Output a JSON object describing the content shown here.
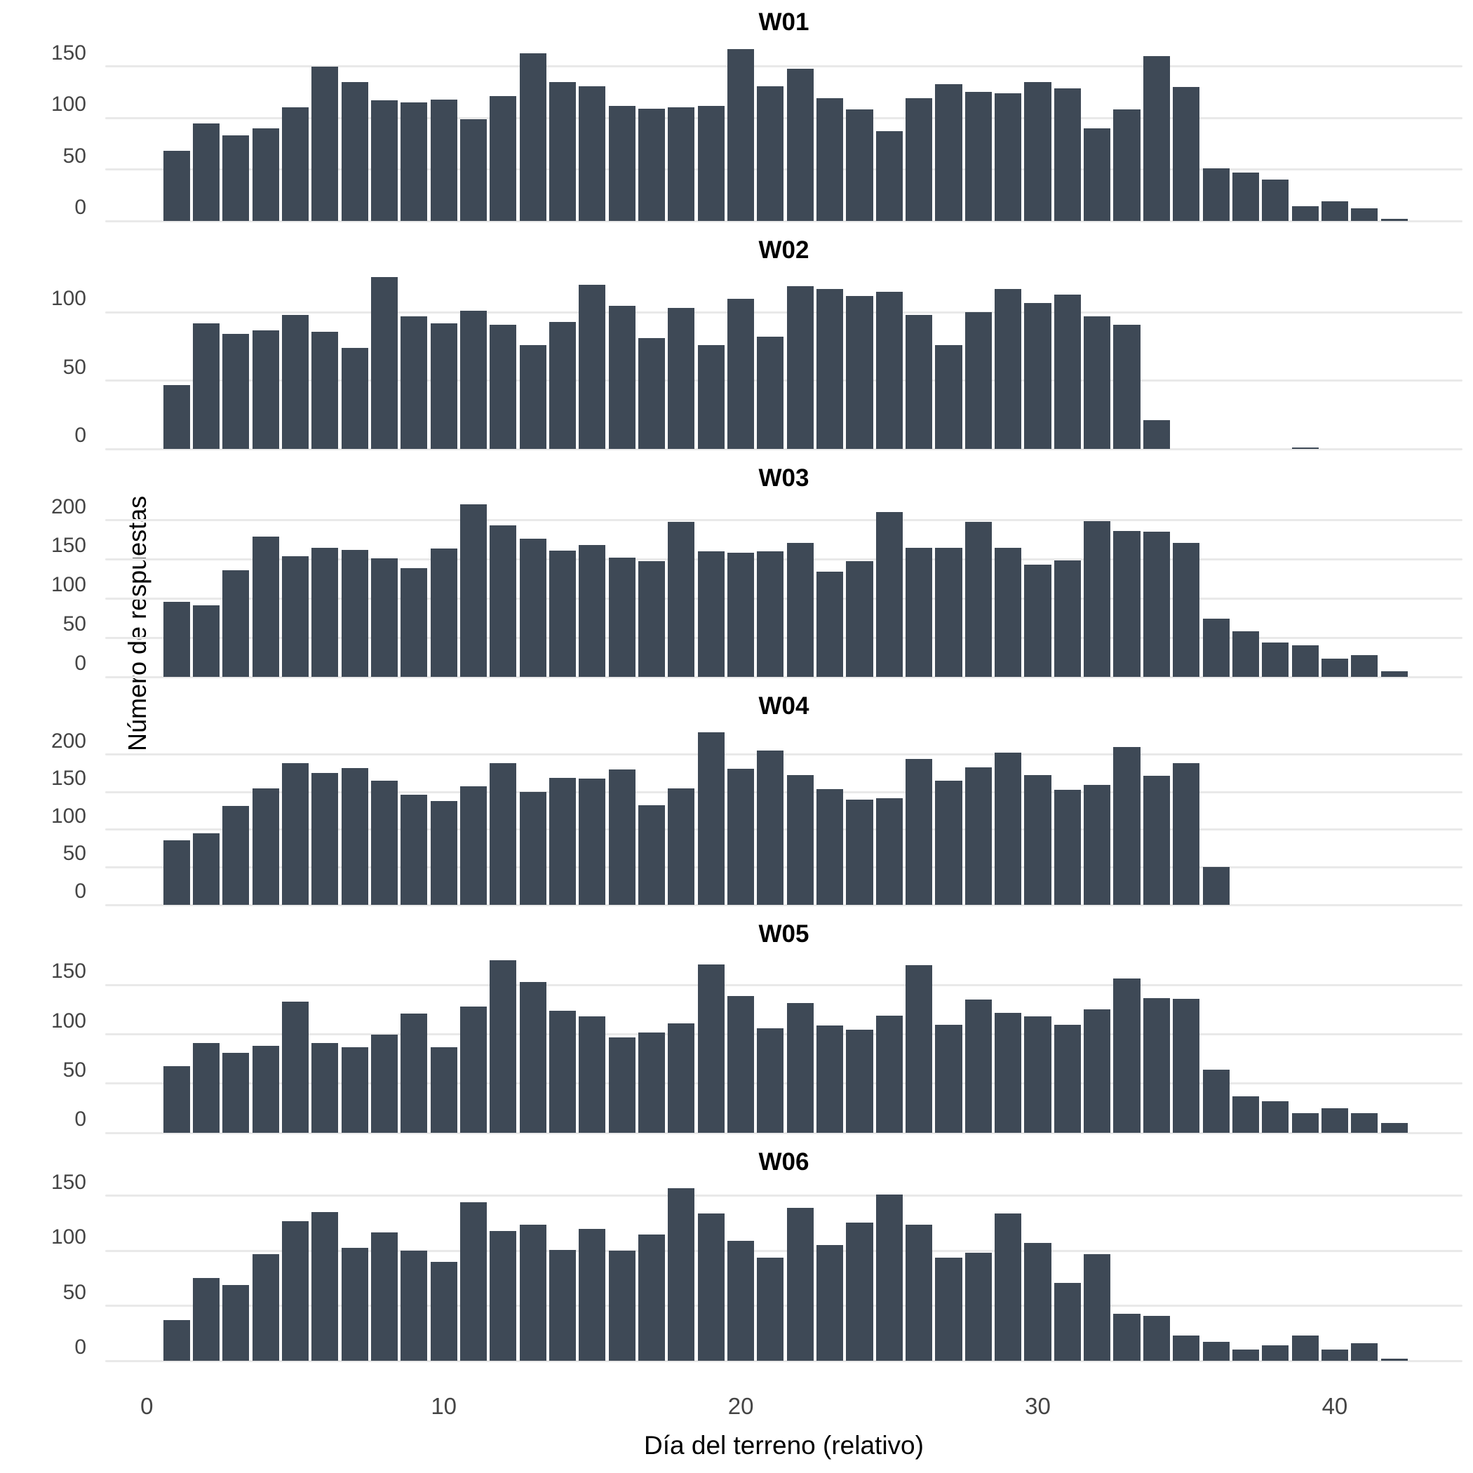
{
  "figure": {
    "background": "#ffffff",
    "bar_color": "#3e4956",
    "gridline_color": "#e9e9e9",
    "tick_label_color": "#454545",
    "axis_title_color": "#000000"
  },
  "chart_data": {
    "type": "bar",
    "title": "",
    "xlabel": "Día del terreno (relativo)",
    "ylabel": "Número de respuestas",
    "legend": "none",
    "grid": "horizontal",
    "x_ticks": [
      0,
      10,
      20,
      30,
      40
    ],
    "x_range": [
      -1.4,
      44.3
    ],
    "bar_width_days": 0.9,
    "x_unit": "day (bars centered at integer days starting at 1)",
    "facets": [
      {
        "label": "W01",
        "ylim": [
          0,
          175
        ],
        "gridlines": [
          0,
          50,
          100,
          150
        ],
        "values": [
          68,
          95,
          83,
          90,
          110,
          150,
          135,
          117,
          115,
          118,
          99,
          121,
          163,
          135,
          131,
          112,
          109,
          110,
          112,
          167,
          131,
          148,
          119,
          108,
          87,
          119,
          133,
          125,
          124,
          135,
          129,
          90,
          108,
          160,
          130,
          51,
          47,
          40,
          14,
          19,
          12,
          2
        ]
      },
      {
        "label": "W02",
        "ylim": [
          0,
          132
        ],
        "gridlines": [
          0,
          50,
          100
        ],
        "values": [
          47,
          92,
          84,
          87,
          98,
          86,
          74,
          126,
          97,
          92,
          101,
          91,
          76,
          93,
          120,
          105,
          81,
          103,
          76,
          110,
          82,
          119,
          117,
          112,
          115,
          98,
          76,
          100,
          117,
          107,
          113,
          97,
          91,
          21,
          0,
          0,
          0,
          0,
          1
        ]
      },
      {
        "label": "W03",
        "ylim": [
          0,
          230
        ],
        "gridlines": [
          0,
          50,
          100,
          150,
          200
        ],
        "values": [
          96,
          91,
          136,
          179,
          154,
          165,
          162,
          151,
          139,
          164,
          220,
          193,
          176,
          161,
          168,
          152,
          148,
          198,
          160,
          158,
          160,
          171,
          134,
          148,
          210,
          165,
          165,
          198,
          165,
          143,
          149,
          199,
          186,
          185,
          171,
          74,
          58,
          44,
          40,
          23,
          28,
          7
        ]
      },
      {
        "label": "W04",
        "ylim": [
          0,
          240
        ],
        "gridlines": [
          0,
          50,
          100,
          150,
          200
        ],
        "values": [
          86,
          95,
          132,
          155,
          189,
          176,
          182,
          165,
          147,
          138,
          158,
          189,
          150,
          169,
          168,
          180,
          133,
          155,
          230,
          181,
          205,
          173,
          154,
          140,
          142,
          194,
          165,
          183,
          203,
          173,
          153,
          160,
          210,
          172,
          189,
          50
        ]
      },
      {
        "label": "W05",
        "ylim": [
          0,
          183
        ],
        "gridlines": [
          0,
          50,
          100,
          150
        ],
        "values": [
          68,
          91,
          81,
          88,
          133,
          91,
          87,
          100,
          121,
          87,
          128,
          175,
          153,
          124,
          118,
          97,
          102,
          111,
          171,
          139,
          106,
          132,
          109,
          105,
          119,
          170,
          110,
          135,
          122,
          118,
          110,
          125,
          157,
          137,
          136,
          64,
          37,
          32,
          20,
          25,
          20,
          10
        ]
      },
      {
        "label": "W06",
        "ylim": [
          0,
          164
        ],
        "gridlines": [
          0,
          50,
          100,
          150
        ],
        "values": [
          37,
          75,
          69,
          97,
          127,
          135,
          103,
          117,
          100,
          90,
          144,
          118,
          124,
          101,
          120,
          100,
          115,
          157,
          134,
          109,
          94,
          139,
          105,
          126,
          151,
          124,
          94,
          98,
          134,
          107,
          71,
          97,
          43,
          41,
          23,
          17,
          10,
          14,
          23,
          10,
          16,
          2
        ]
      }
    ]
  }
}
